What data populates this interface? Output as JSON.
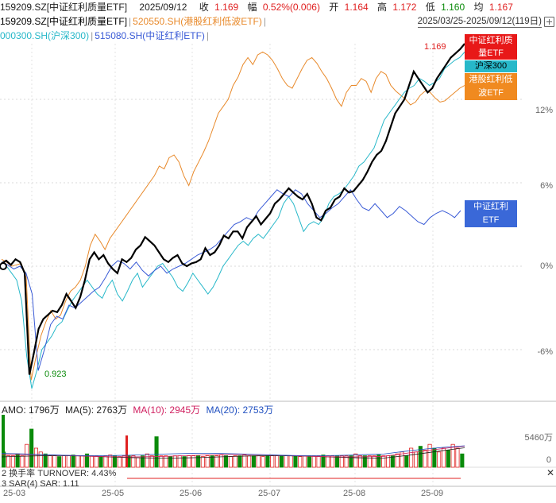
{
  "header": {
    "symbol": "159209.SZ[中证红利质量ETF]",
    "date": "2025/09/12",
    "close_label": "收",
    "close_value": "1.169",
    "change_label": "幅",
    "change_value": "0.52%(0.006)",
    "open_label": "开",
    "open_value": "1.164",
    "high_label": "高",
    "high_value": "1.172",
    "low_label": "低",
    "low_value": "1.160",
    "avg_label": "均",
    "avg_value": "1.167"
  },
  "legend": {
    "s1": "159209.SZ[中证红利质量ETF]",
    "s2": "520550.SH(港股红利低波ETF)",
    "s3": "000300.SH(沪深300)",
    "s4": "515080.SH(中证红利ETF)",
    "divider": "|"
  },
  "range": "2025/03/25-2025/09/12(119日)",
  "y_axis": [
    "12%",
    "6%",
    "0%",
    "-6%"
  ],
  "tags": {
    "price": "1.169",
    "t1": "中证红利质量ETF",
    "t2": "沪深300",
    "t3": "港股红利低波ETF",
    "t4": "中证红利ETF",
    "low": "0.923"
  },
  "amo": {
    "label": "AMO: 1796万",
    "ma5": "MA(5): 2763万",
    "ma10": "MA(10): 2945万",
    "ma20": "MA(20): 2753万",
    "scale_top": "5460万",
    "scale_bottom": "0"
  },
  "sub2": "2 换手率 TURNOVER: 4.43%",
  "sub3": "3 SAR(4) SAR: 1.11",
  "x_axis": [
    "25-03",
    "25-05",
    "25-06",
    "25-07",
    "25-08",
    "25-09"
  ],
  "colors": {
    "s1": "#000000",
    "s2": "#e8892a",
    "s3": "#27b8c9",
    "s4": "#3a5bd6",
    "up": "#e02020",
    "down": "#0a8a0a",
    "tag1": "#e81818",
    "tag2": "#27b8c9",
    "tag3": "#f08a20",
    "tag4": "#3a68d8"
  },
  "chart_data": {
    "type": "line",
    "y_unit": "%",
    "ylim": [
      -9,
      17
    ],
    "y_ticks": [
      12,
      6,
      0,
      -6
    ],
    "x_ticks": [
      "25-03",
      "25-05",
      "25-06",
      "25-07",
      "25-08",
      "25-09"
    ],
    "series": [
      {
        "name": "159209.SZ[中证红利质量ETF]",
        "color": "#000000",
        "values": [
          0.2,
          0.4,
          0.1,
          0.5,
          0.3,
          -0.5,
          -7.8,
          -6.2,
          -4.5,
          -3.8,
          -3.5,
          -3.2,
          -3.3,
          -2.8,
          -2.0,
          -2.5,
          -3.0,
          -2.2,
          -1.0,
          0.5,
          1.0,
          0.5,
          0.8,
          0.2,
          -0.2,
          -0.5,
          0.5,
          0.3,
          0.6,
          1.2,
          1.5,
          2.1,
          1.8,
          1.5,
          1.0,
          0.5,
          0.3,
          0.6,
          0.8,
          0.2,
          0.0,
          0.2,
          0.3,
          0.5,
          1.3,
          0.8,
          1.0,
          1.5,
          2.2,
          2.0,
          2.5,
          2.5,
          2.0,
          2.8,
          3.2,
          3.6,
          3.0,
          3.4,
          3.8,
          4.5,
          4.8,
          5.2,
          5.6,
          5.3,
          5.0,
          4.8,
          5.2,
          4.5,
          3.5,
          3.3,
          4.0,
          4.2,
          4.8,
          5.0,
          5.6,
          5.3,
          5.4,
          5.8,
          6.2,
          6.8,
          7.5,
          8.0,
          8.3,
          9.0,
          10.0,
          11.0,
          11.5,
          12.0,
          13.0,
          14.0,
          13.5,
          13.0,
          12.5,
          12.8,
          13.5,
          14.0,
          14.5,
          15.0,
          15.3,
          15.6,
          16.0
        ]
      },
      {
        "name": "520550.SH(港股红利低波ETF)",
        "color": "#e8892a",
        "values": [
          0.5,
          0.3,
          0.0,
          0.1,
          0.2,
          -0.8,
          -8.2,
          -6.5,
          -5.0,
          -4.0,
          -3.2,
          -3.8,
          -3.5,
          -2.5,
          -1.8,
          -1.5,
          -1.0,
          0.0,
          1.5,
          2.3,
          1.8,
          1.2,
          2.0,
          2.5,
          3.0,
          3.5,
          4.0,
          4.5,
          5.0,
          5.5,
          6.0,
          6.5,
          7.2,
          7.0,
          7.8,
          8.0,
          7.5,
          6.5,
          5.8,
          6.8,
          7.5,
          8.2,
          9.0,
          10.0,
          11.0,
          11.5,
          12.0,
          13.0,
          13.6,
          14.5,
          15.0,
          14.5,
          15.2,
          15.4,
          15.2,
          14.8,
          14.2,
          13.5,
          13.0,
          12.8,
          13.5,
          14.2,
          14.8,
          15.0,
          14.6,
          14.0,
          13.5,
          12.8,
          12.0,
          11.5,
          12.5,
          13.0,
          13.0,
          13.5,
          13.3,
          12.5,
          13.5,
          14.0,
          13.8,
          13.0,
          12.6,
          12.3,
          12.0,
          11.6,
          11.8,
          12.3,
          12.6,
          12.5,
          12.1,
          11.8,
          11.9,
          12.2,
          12.5,
          12.8,
          13.0
        ]
      },
      {
        "name": "000300.SH(沪深300)",
        "color": "#27b8c9",
        "values": [
          0.2,
          0.0,
          -0.5,
          -1.0,
          -2.5,
          -6.5,
          -8.8,
          -7.5,
          -6.0,
          -5.5,
          -5.0,
          -4.3,
          -4.0,
          -3.2,
          -2.5,
          -2.0,
          -1.5,
          -1.0,
          -1.5,
          -2.0,
          -2.3,
          -1.5,
          -1.0,
          -2.0,
          -2.5,
          -1.8,
          -1.0,
          -0.5,
          -1.5,
          -1.0,
          -0.5,
          0.0,
          0.2,
          -0.3,
          -0.8,
          -1.5,
          -1.8,
          -1.2,
          -0.5,
          -1.0,
          -1.5,
          -2.0,
          -1.5,
          -0.8,
          0.0,
          0.5,
          1.0,
          1.5,
          1.8,
          1.5,
          2.0,
          2.3,
          2.0,
          2.5,
          3.0,
          3.5,
          4.5,
          5.0,
          4.5,
          3.5,
          2.5,
          3.0,
          3.2,
          3.0,
          3.5,
          4.5,
          5.0,
          5.2,
          5.5,
          6.0,
          6.5,
          7.2,
          7.5,
          8.0,
          8.5,
          9.5,
          10.5,
          11.0,
          11.5,
          12.0,
          12.5,
          12.8,
          13.0,
          13.5,
          13.3,
          13.0,
          13.2,
          13.5,
          14.2,
          14.5,
          14.8,
          15.0,
          15.4
        ]
      },
      {
        "name": "515080.SH(中证红利ETF)",
        "color": "#3a5bd6",
        "values": [
          0.3,
          0.1,
          -0.2,
          0.0,
          -0.5,
          -2.0,
          -7.5,
          -6.0,
          -4.2,
          -3.6,
          -3.8,
          -2.8,
          -3.0,
          -2.6,
          -2.2,
          -1.8,
          -1.5,
          -0.8,
          0.0,
          0.4,
          0.2,
          -0.2,
          0.3,
          -0.3,
          -0.7,
          -0.3,
          0.0,
          -0.5,
          -0.2,
          0.0,
          0.2,
          0.5,
          0.8,
          1.0,
          1.2,
          1.5,
          2.0,
          2.5,
          3.0,
          3.2,
          3.5,
          3.3,
          4.0,
          4.5,
          5.0,
          5.5,
          5.2,
          5.0,
          5.5,
          5.2,
          4.5,
          4.0,
          3.5,
          3.8,
          4.2,
          4.5,
          5.0,
          5.5,
          4.8,
          4.2,
          4.0,
          4.5,
          4.0,
          3.5,
          3.8,
          4.3,
          4.0,
          3.6,
          3.2,
          3.0,
          3.5,
          3.8,
          4.0,
          3.8,
          3.5,
          4.0
        ]
      }
    ]
  }
}
